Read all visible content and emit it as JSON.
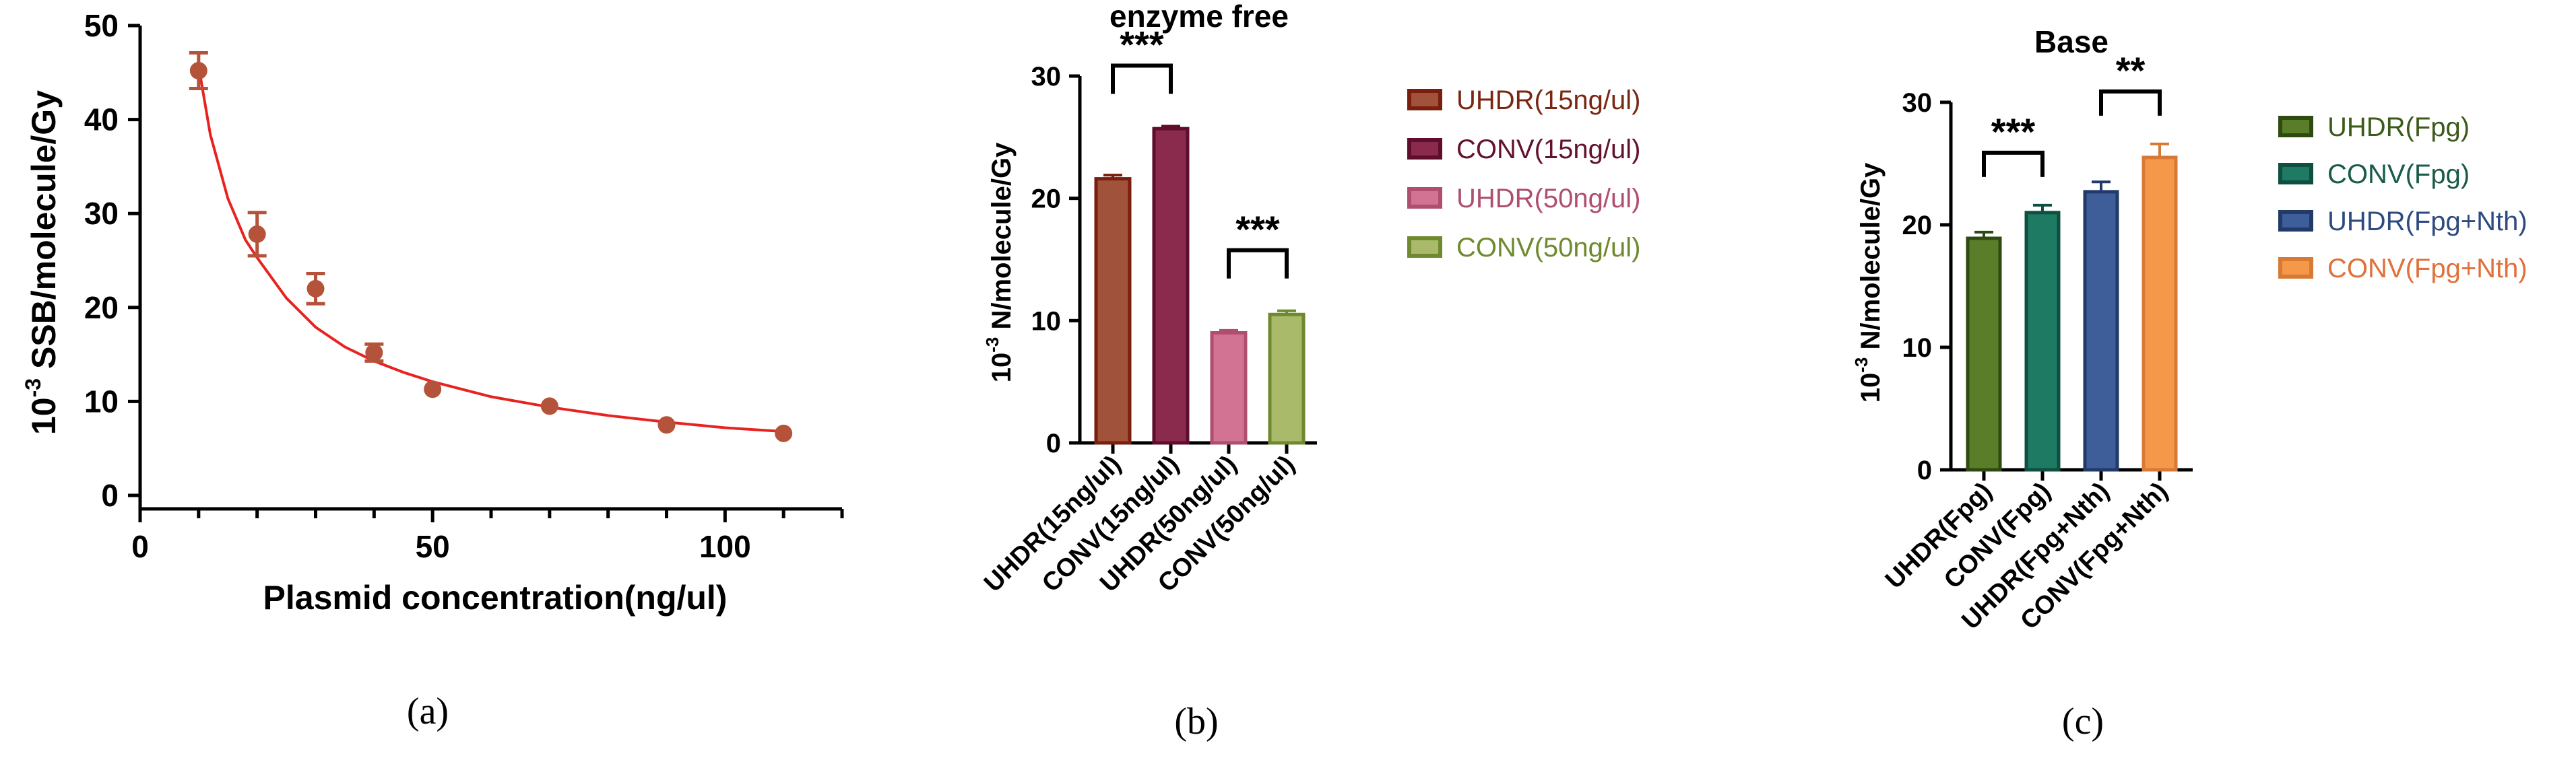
{
  "chart_data": [
    {
      "type": "scatter",
      "caption": "(a)",
      "title": "",
      "xlabel": "Plasmid concentration(ng/ul)",
      "ylabel_prefix": "10",
      "ylabel_exp": "-3",
      "ylabel_rest": " SSB/molecule/Gy",
      "xlim": [
        0,
        120
      ],
      "ylim": [
        0,
        50
      ],
      "xticks": [
        0,
        50,
        100
      ],
      "xminor_step": 10,
      "yticks": [
        0,
        10,
        20,
        30,
        40,
        50
      ],
      "grid": false,
      "marker_color": "#B5533A",
      "fit_color": "#E8231F",
      "points": [
        {
          "x": 10,
          "y": 45.2,
          "err": 1.9
        },
        {
          "x": 20,
          "y": 27.8,
          "err": 2.3
        },
        {
          "x": 30,
          "y": 22.0,
          "err": 1.6
        },
        {
          "x": 40,
          "y": 15.2,
          "err": 0.9
        },
        {
          "x": 50,
          "y": 11.3,
          "err": 0
        },
        {
          "x": 70,
          "y": 9.5,
          "err": 0
        },
        {
          "x": 90,
          "y": 7.5,
          "err": 0
        },
        {
          "x": 110,
          "y": 6.6,
          "err": 0
        }
      ],
      "fit_curve": [
        [
          10,
          45.7
        ],
        [
          12,
          38.4
        ],
        [
          15,
          31.6
        ],
        [
          18,
          27.2
        ],
        [
          20,
          25.3
        ],
        [
          25,
          21.0
        ],
        [
          30,
          17.9
        ],
        [
          35,
          15.8
        ],
        [
          40,
          14.3
        ],
        [
          45,
          13.1
        ],
        [
          50,
          12.1
        ],
        [
          60,
          10.5
        ],
        [
          70,
          9.4
        ],
        [
          80,
          8.5
        ],
        [
          90,
          7.8
        ],
        [
          100,
          7.2
        ],
        [
          110,
          6.8
        ]
      ]
    },
    {
      "type": "bar",
      "caption": "(b)",
      "title": "enzyme free",
      "ylabel_prefix": "10",
      "ylabel_exp": "-3",
      "ylabel_rest": " N/molecule/Gy",
      "ylim": [
        0,
        30
      ],
      "yticks": [
        0,
        10,
        20,
        30
      ],
      "grid": false,
      "legend_position": "right",
      "categories": [
        "UHDR(15ng/ul)",
        "CONV(15ng/ul)",
        "UHDR(50ng/ul)",
        "CONV(50ng/ul)"
      ],
      "values": [
        21.6,
        25.7,
        9.0,
        10.5
      ],
      "errors": [
        0.3,
        0.2,
        0.2,
        0.3
      ],
      "fills": [
        "#A0533A",
        "#8A2B4E",
        "#D37393",
        "#A9BB6A"
      ],
      "strokes": [
        "#7A1E0E",
        "#5E0E2C",
        "#B04E72",
        "#6F8A2E"
      ],
      "legend_text_colors": [
        "#7A2712",
        "#63112E",
        "#B04E72",
        "#6F8A2E"
      ],
      "significance": [
        {
          "bars": [
            0,
            1
          ],
          "label": "***"
        },
        {
          "bars": [
            2,
            3
          ],
          "label": "***"
        }
      ]
    },
    {
      "type": "bar",
      "caption": "(c)",
      "title": "Base",
      "ylabel_prefix": "10",
      "ylabel_exp": "-3",
      "ylabel_rest": " N/molecule/Gy",
      "ylim": [
        0,
        30
      ],
      "yticks": [
        0,
        10,
        20,
        30
      ],
      "grid": false,
      "legend_position": "right",
      "categories": [
        "UHDR(Fpg)",
        "CONV(Fpg)",
        "UHDR(Fpg+Nth)",
        "CONV(Fpg+Nth)"
      ],
      "values": [
        18.9,
        21.0,
        22.7,
        25.5
      ],
      "errors": [
        0.5,
        0.6,
        0.8,
        1.1
      ],
      "fills": [
        "#5A7D2A",
        "#1F7A63",
        "#3D5E99",
        "#F5984A"
      ],
      "strokes": [
        "#2F4A10",
        "#0E4F3F",
        "#223A6A",
        "#D77A35"
      ],
      "legend_text_colors": [
        "#3C5A1A",
        "#1A5A4A",
        "#2E4A80",
        "#E0713B"
      ],
      "significance": [
        {
          "bars": [
            0,
            1
          ],
          "label": "***"
        },
        {
          "bars": [
            2,
            3
          ],
          "label": "**"
        }
      ]
    }
  ]
}
